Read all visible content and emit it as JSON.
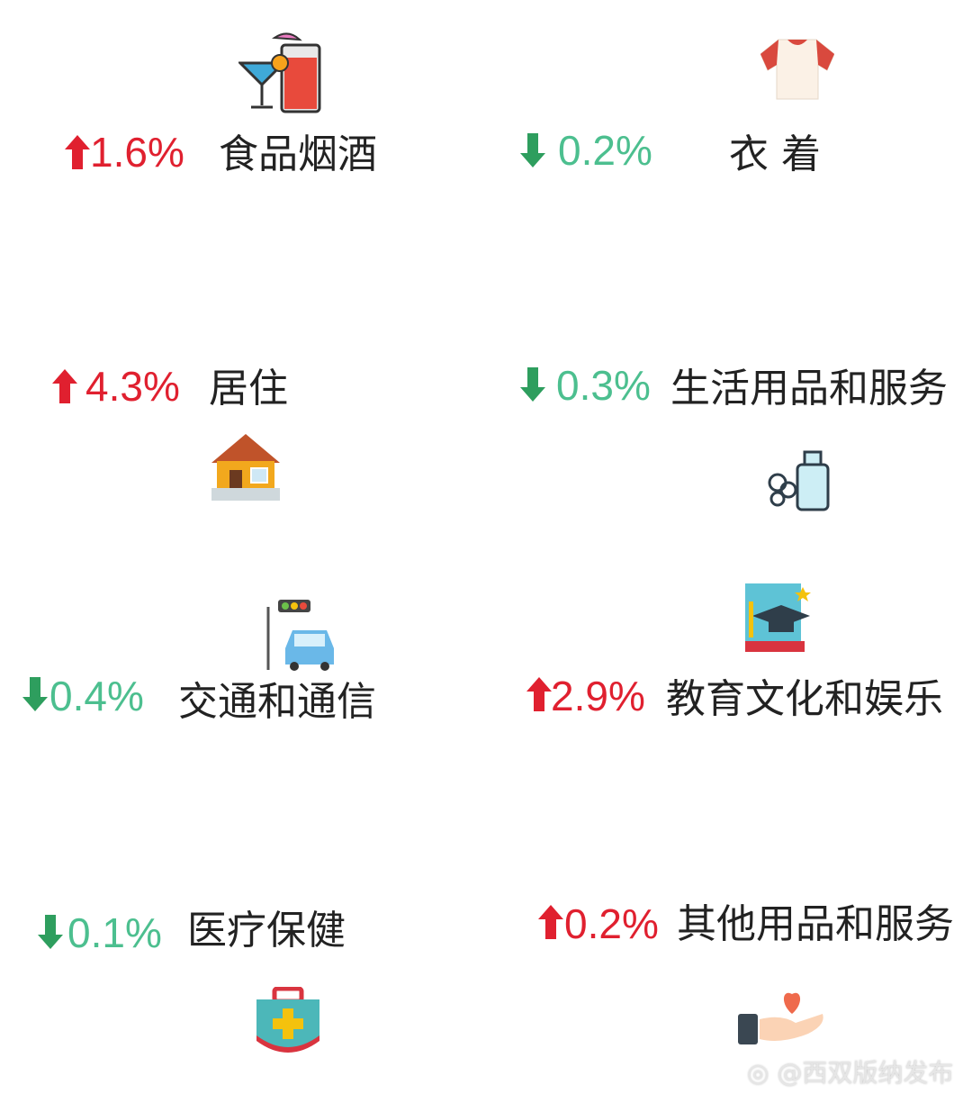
{
  "items": [
    {
      "category": "食品烟酒",
      "change": "1.6%",
      "direction": "up",
      "icon": "cocktail-juice-icon"
    },
    {
      "category": "衣  着",
      "change": "0.2%",
      "direction": "down",
      "icon": "tshirt-icon"
    },
    {
      "category": "居住",
      "change": "4.3%",
      "direction": "up",
      "icon": "house-icon"
    },
    {
      "category": "生活用品和服务",
      "change": "0.3%",
      "direction": "down",
      "icon": "toiletries-icon"
    },
    {
      "category": "交通和通信",
      "change": "0.4%",
      "direction": "down",
      "icon": "car-traffic-light-icon"
    },
    {
      "category": "教育文化和娱乐",
      "change": "2.9%",
      "direction": "up",
      "icon": "graduation-book-icon"
    },
    {
      "category": "医疗保健",
      "change": "0.1%",
      "direction": "down",
      "icon": "first-aid-kit-icon"
    },
    {
      "category": "其他用品和服务",
      "change": "0.2%",
      "direction": "up",
      "icon": "hand-heart-icon"
    }
  ],
  "colors": {
    "up": "#e0202f",
    "down": "#4cbf8f",
    "down_arrow": "#2e9e5e"
  },
  "watermark": "@西双版纳发布"
}
